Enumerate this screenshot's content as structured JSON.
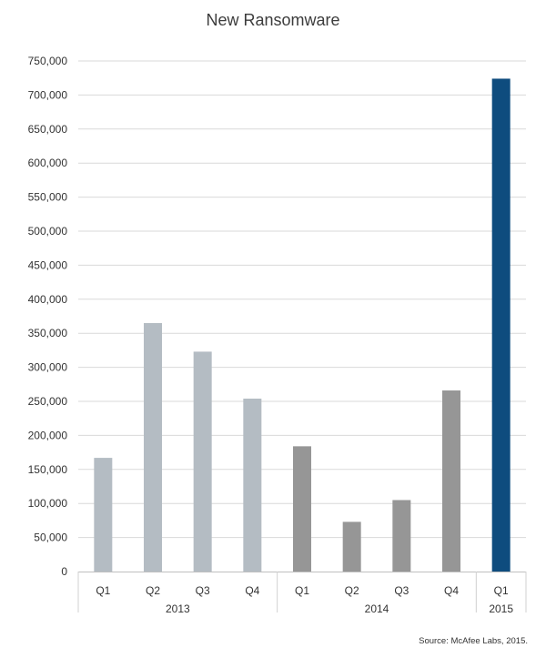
{
  "chart_data": {
    "type": "bar",
    "title": "New Ransomware",
    "xlabel": "",
    "ylabel": "",
    "ylim": [
      0,
      750000
    ],
    "yticks": [
      0,
      50000,
      100000,
      150000,
      200000,
      250000,
      300000,
      350000,
      400000,
      450000,
      500000,
      550000,
      600000,
      650000,
      700000,
      750000
    ],
    "ytick_labels": [
      "0",
      "50,000",
      "100,000",
      "150,000",
      "200,000",
      "250,000",
      "300,000",
      "350,000",
      "400,000",
      "450,000",
      "500,000",
      "550,000",
      "600,000",
      "650,000",
      "700,000",
      "750,000"
    ],
    "grid": true,
    "legend": "none",
    "categories": [
      "Q1",
      "Q2",
      "Q3",
      "Q4",
      "Q1",
      "Q2",
      "Q3",
      "Q4",
      "Q1"
    ],
    "groups": [
      {
        "label": "2013",
        "start": 0,
        "count": 4
      },
      {
        "label": "2014",
        "start": 4,
        "count": 4
      },
      {
        "label": "2015",
        "start": 8,
        "count": 1
      }
    ],
    "values": [
      167000,
      365000,
      323000,
      254000,
      184000,
      73000,
      105000,
      266000,
      724000
    ],
    "colors": [
      "#b4bcc3",
      "#b4bcc3",
      "#b4bcc3",
      "#b4bcc3",
      "#969696",
      "#969696",
      "#969696",
      "#969696",
      "#0e4c7e"
    ],
    "source": "Source: McAfee Labs, 2015."
  }
}
